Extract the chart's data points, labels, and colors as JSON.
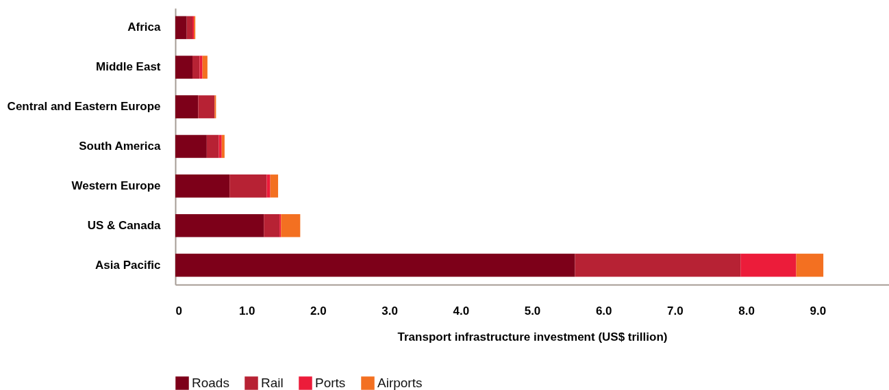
{
  "chart_data": {
    "type": "bar",
    "orientation": "horizontal",
    "stacked": true,
    "xlabel": "Transport infrastructure investment (US$ trillion)",
    "categories": [
      "Africa",
      "Middle East",
      "Central and Eastern Europe",
      "South America",
      "Western Europe",
      "US & Canada",
      "Asia Pacific"
    ],
    "series": [
      {
        "name": "Roads",
        "color": "#7d0019",
        "values": [
          0.16,
          0.24,
          0.32,
          0.44,
          0.76,
          1.24,
          5.6
        ]
      },
      {
        "name": "Rail",
        "color": "#b72234",
        "values": [
          0.08,
          0.1,
          0.23,
          0.17,
          0.52,
          0.22,
          2.32
        ]
      },
      {
        "name": "Ports",
        "color": "#ec1c3a",
        "values": [
          0.02,
          0.04,
          0,
          0.04,
          0.05,
          0.02,
          0.78
        ]
      },
      {
        "name": "Airports",
        "color": "#f37021",
        "values": [
          0.02,
          0.07,
          0.02,
          0.04,
          0.11,
          0.27,
          0.38
        ]
      }
    ],
    "xlim": [
      0,
      10
    ],
    "xticks": [
      0,
      {
        "value": 1,
        "label": "1.0"
      },
      {
        "value": 2,
        "label": "2.0"
      },
      {
        "value": 3,
        "label": "3.0"
      },
      {
        "value": 4,
        "label": "4.0"
      },
      {
        "value": 5,
        "label": "5.0"
      },
      {
        "value": 6,
        "label": "6.0"
      },
      {
        "value": 7,
        "label": "7.0"
      },
      {
        "value": 8,
        "label": "8.0"
      },
      {
        "value": 9,
        "label": "9.0"
      }
    ],
    "grid": false,
    "legend": "bottom"
  }
}
